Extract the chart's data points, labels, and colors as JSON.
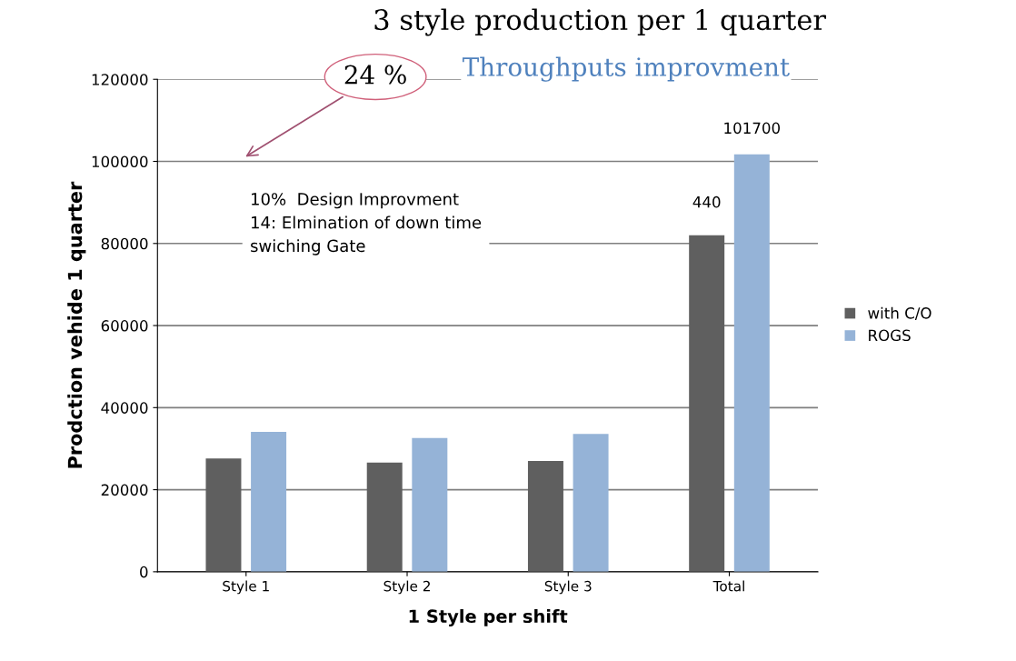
{
  "chart_data": {
    "type": "bar",
    "title": "3 style production per 1 quarter",
    "subtitle": "Throughputs improvment",
    "xlabel": "1 Style per shift",
    "ylabel": "Prodction vehide 1 quarter",
    "categories": [
      "Style 1",
      "Style 2",
      "Style 3",
      "Total"
    ],
    "series": [
      {
        "name": "with C/O",
        "color": "#5f5f5f",
        "values": [
          27600,
          26600,
          27000,
          82000
        ]
      },
      {
        "name": "ROGS",
        "color": "#95b3d7",
        "values": [
          34100,
          32600,
          33600,
          101700
        ],
        "value_labels": [
          null,
          null,
          null,
          "101700"
        ]
      }
    ],
    "annotations": [
      "24 %",
      "10%  Design Improvment\n14: Elmination of down time\nswiching Gate",
      "440"
    ],
    "ylim": [
      0,
      120000
    ],
    "yticks": [
      0,
      20000,
      40000,
      60000,
      80000,
      100000,
      120000
    ],
    "grid": "y",
    "legend": "right"
  }
}
